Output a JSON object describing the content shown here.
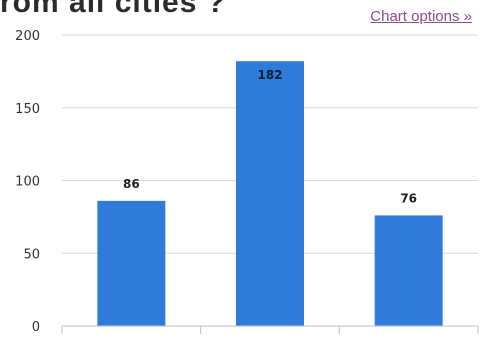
{
  "header": {
    "title_fragment": "rom all cities ?",
    "chart_options_label": "Chart options »"
  },
  "colors": {
    "bar": "#2f7bd9",
    "grid": "#d6dce4",
    "axis": "#b8c0cc",
    "link": "#8a4b8f"
  },
  "chart_data": {
    "type": "bar",
    "categories": [
      "",
      "",
      ""
    ],
    "values": [
      86,
      182,
      76
    ],
    "yticks": [
      0,
      50,
      100,
      150,
      200
    ],
    "ylim": [
      0,
      200
    ],
    "grid": true,
    "data_labels": true,
    "title": "",
    "xlabel": "",
    "ylabel": ""
  }
}
